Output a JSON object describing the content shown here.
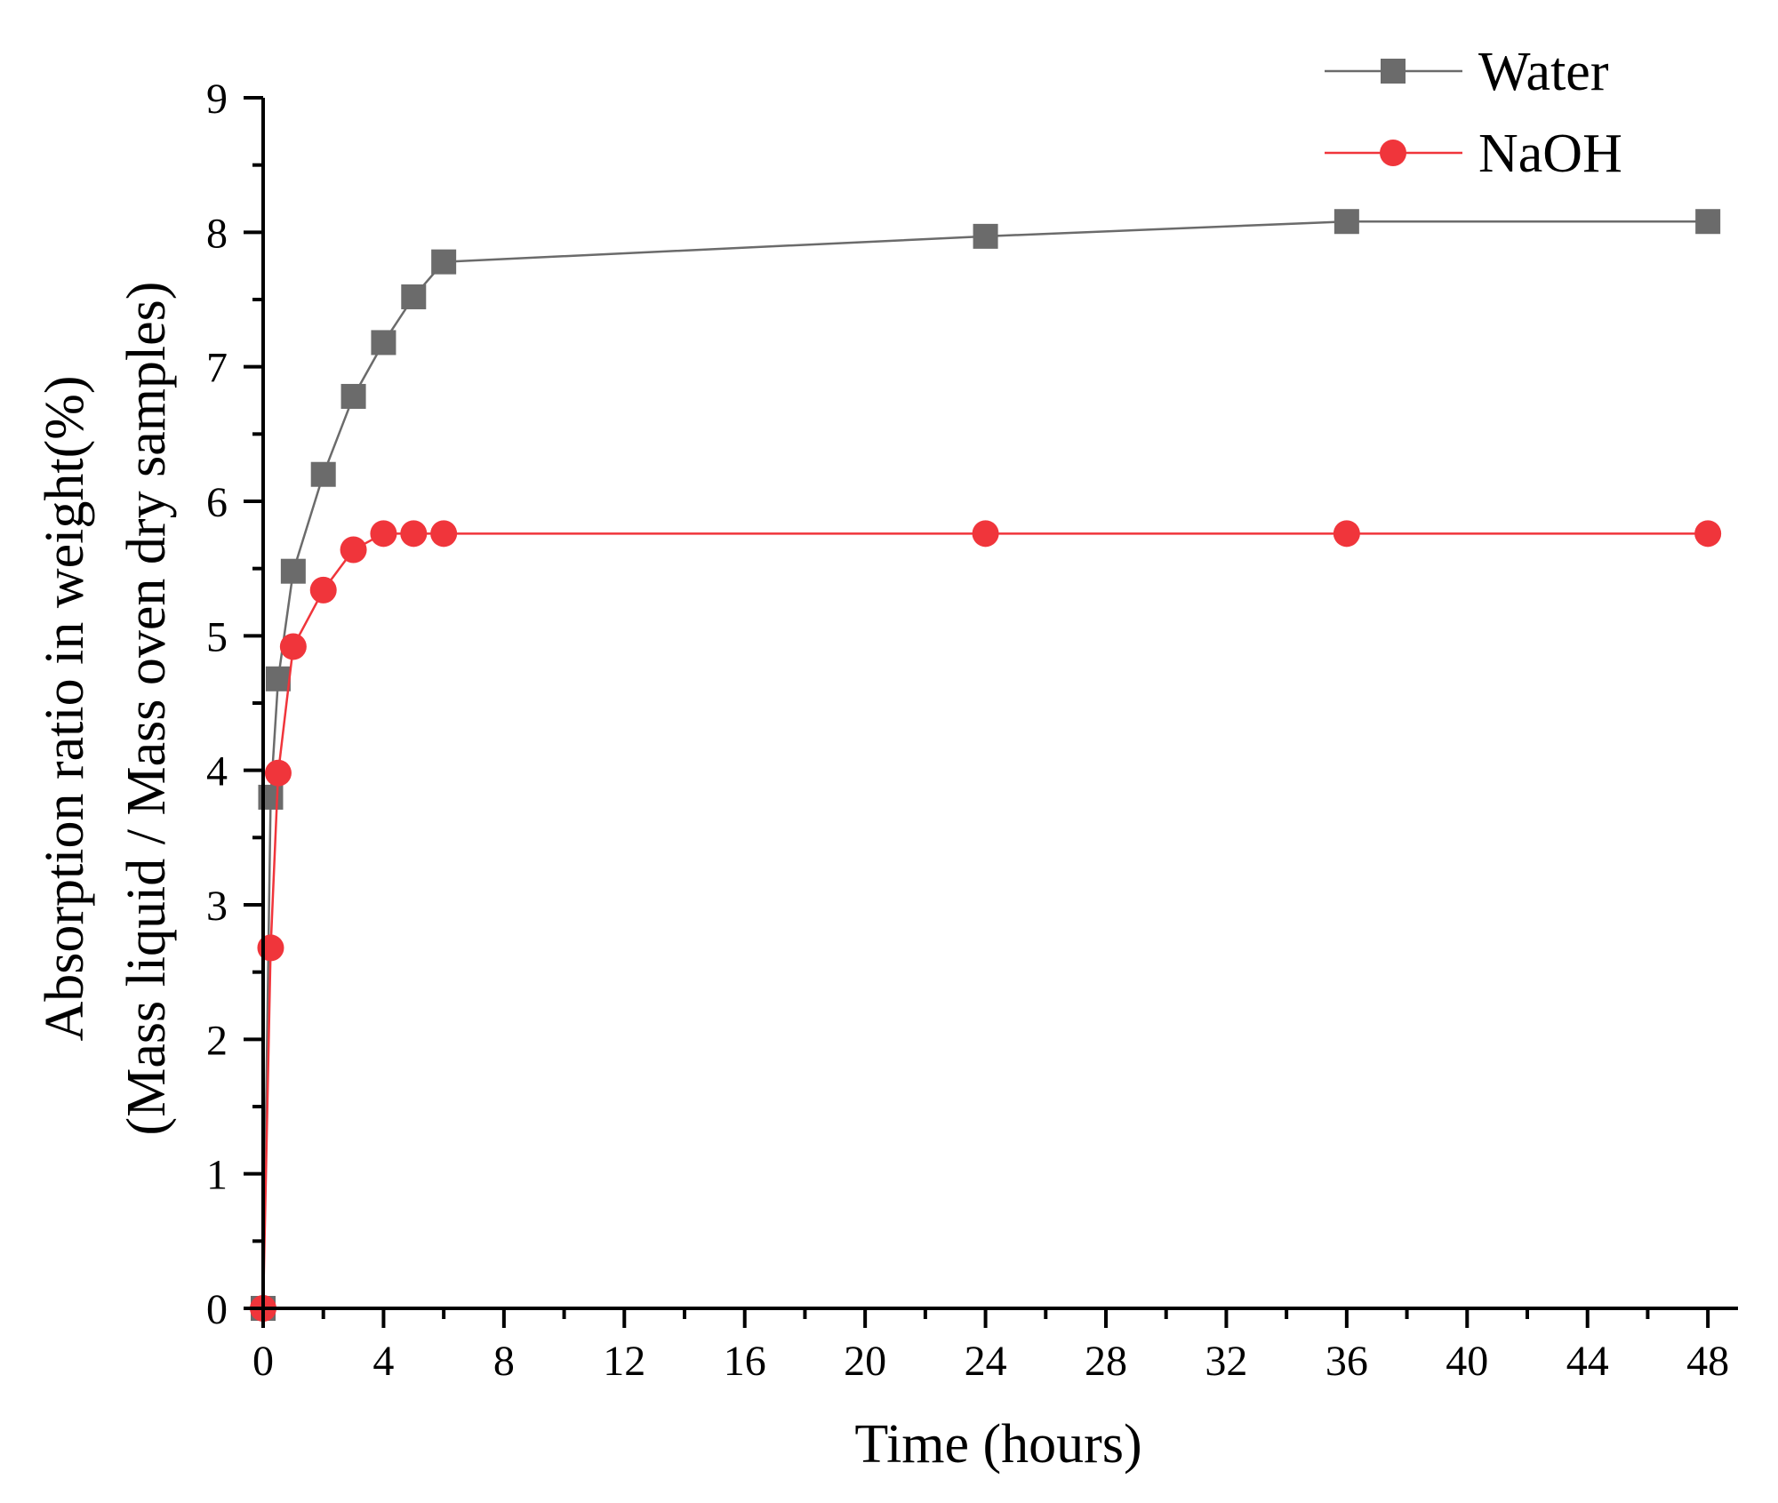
{
  "chart_data": {
    "type": "line",
    "title": "",
    "xlabel": "Time (hours)",
    "ylabel_line1": "Absorption ratio in weight(%)",
    "ylabel_line2": "(Mass liquid / Mass oven dry samples)",
    "xlim": [
      0,
      49
    ],
    "ylim": [
      0,
      9
    ],
    "x_ticks": [
      0,
      4,
      8,
      12,
      16,
      20,
      24,
      28,
      32,
      36,
      40,
      44,
      48
    ],
    "y_ticks": [
      0,
      1,
      2,
      3,
      4,
      5,
      6,
      7,
      8,
      9
    ],
    "legend_position": "top-right",
    "series": [
      {
        "name": "Water",
        "color": "#6b6b6b",
        "marker": "square",
        "x": [
          0,
          0.25,
          0.5,
          1,
          2,
          3,
          4,
          5,
          6,
          24,
          36,
          48
        ],
        "y": [
          0,
          3.8,
          4.68,
          5.48,
          6.2,
          6.78,
          7.18,
          7.52,
          7.78,
          7.97,
          8.08,
          8.08
        ]
      },
      {
        "name": "NaOH",
        "color": "#f0353b",
        "marker": "circle",
        "x": [
          0,
          0.25,
          0.5,
          1,
          2,
          3,
          4,
          5,
          6,
          24,
          36,
          48
        ],
        "y": [
          0,
          2.68,
          3.98,
          4.92,
          5.34,
          5.64,
          5.76,
          5.76,
          5.76,
          5.76,
          5.76,
          5.76
        ]
      }
    ]
  }
}
